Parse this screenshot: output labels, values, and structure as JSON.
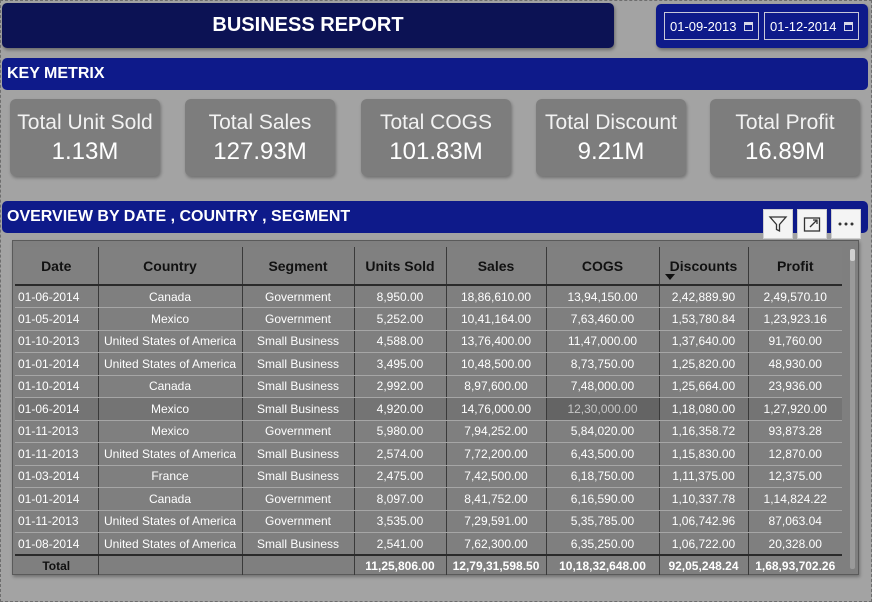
{
  "header": {
    "title": "BUSINESS REPORT"
  },
  "date_range": {
    "start": "01-09-2013",
    "end": "01-12-2014"
  },
  "key_metrics": {
    "section_title": "KEY METRIX",
    "cards": [
      {
        "label": "Total Unit Sold",
        "value": "1.13M"
      },
      {
        "label": "Total Sales",
        "value": "127.93M"
      },
      {
        "label": "Total COGS",
        "value": "101.83M"
      },
      {
        "label": "Total Discount",
        "value": "9.21M"
      },
      {
        "label": "Total Profit",
        "value": "16.89M"
      }
    ]
  },
  "overview": {
    "section_title": "OVERVIEW BY DATE , COUNTRY , SEGMENT",
    "icons": [
      "filter-icon",
      "focus-mode-icon",
      "more-options-icon"
    ],
    "columns": [
      "Date",
      "Country",
      "Segment",
      "Units Sold",
      "Sales",
      "COGS",
      "Discounts",
      "Profit"
    ],
    "rows": [
      [
        "01-06-2014",
        "Canada",
        "Government",
        "8,950.00",
        "18,86,610.00",
        "13,94,150.00",
        "2,42,889.90",
        "2,49,570.10"
      ],
      [
        "01-05-2014",
        "Mexico",
        "Government",
        "5,252.00",
        "10,41,164.00",
        "7,63,460.00",
        "1,53,780.84",
        "1,23,923.16"
      ],
      [
        "01-10-2013",
        "United States of America",
        "Small Business",
        "4,588.00",
        "13,76,400.00",
        "11,47,000.00",
        "1,37,640.00",
        "91,760.00"
      ],
      [
        "01-01-2014",
        "United States of America",
        "Small Business",
        "3,495.00",
        "10,48,500.00",
        "8,73,750.00",
        "1,25,820.00",
        "48,930.00"
      ],
      [
        "01-10-2014",
        "Canada",
        "Small Business",
        "2,992.00",
        "8,97,600.00",
        "7,48,000.00",
        "1,25,664.00",
        "23,936.00"
      ],
      [
        "01-06-2014",
        "Mexico",
        "Small Business",
        "4,920.00",
        "14,76,000.00",
        "12,30,000.00",
        "1,18,080.00",
        "1,27,920.00"
      ],
      [
        "01-11-2013",
        "Mexico",
        "Government",
        "5,980.00",
        "7,94,252.00",
        "5,84,020.00",
        "1,16,358.72",
        "93,873.28"
      ],
      [
        "01-11-2013",
        "United States of America",
        "Small Business",
        "2,574.00",
        "7,72,200.00",
        "6,43,500.00",
        "1,15,830.00",
        "12,870.00"
      ],
      [
        "01-03-2014",
        "France",
        "Small Business",
        "2,475.00",
        "7,42,500.00",
        "6,18,750.00",
        "1,11,375.00",
        "12,375.00"
      ],
      [
        "01-01-2014",
        "Canada",
        "Government",
        "8,097.00",
        "8,41,752.00",
        "6,16,590.00",
        "1,10,337.78",
        "1,14,824.22"
      ],
      [
        "01-11-2013",
        "United States of America",
        "Government",
        "3,535.00",
        "7,29,591.00",
        "5,35,785.00",
        "1,06,742.96",
        "87,063.04"
      ],
      [
        "01-08-2014",
        "United States of America",
        "Small Business",
        "2,541.00",
        "7,62,300.00",
        "6,35,250.00",
        "1,06,722.00",
        "20,328.00"
      ]
    ],
    "total": {
      "label": "Total",
      "units_sold": "11,25,806.00",
      "sales": "12,79,31,598.50",
      "cogs": "10,18,32,648.00",
      "discounts": "92,05,248.24",
      "profit": "1,68,93,702.26"
    }
  }
}
